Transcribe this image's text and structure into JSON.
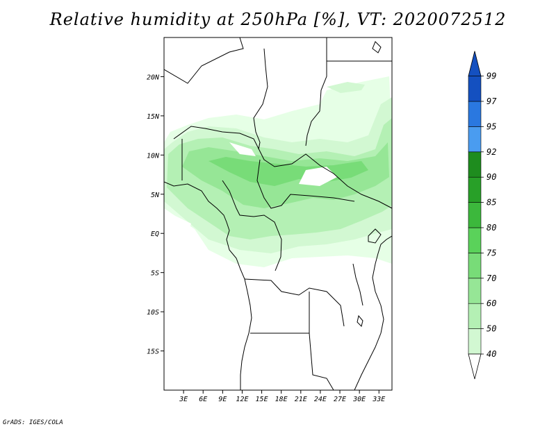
{
  "title": "Relative humidity at 250hPa [%], VT: 2020072512",
  "credit": "GrADS: IGES/COLA",
  "colors": {
    "rh_40": "#e6ffe6",
    "rh_50": "#d2f8d2",
    "rh_60": "#b4f0b4",
    "rh_70": "#96e696",
    "rh_75": "#78dc78",
    "rh_80": "#5ad25a",
    "rh_85": "#3cb83c",
    "rh_90": "#28a028",
    "rh_92": "#1e8c1e",
    "rh_95": "#4a9cf0",
    "rh_97": "#2a78e0",
    "rh_99": "#1450c0",
    "coast": "#000000"
  },
  "chart_data": {
    "type": "heatmap",
    "title": "Relative humidity at 250hPa [%], VT: 2020072512",
    "x_axis": {
      "range": [
        0,
        35
      ],
      "ticks": [
        3,
        6,
        9,
        12,
        15,
        18,
        21,
        24,
        27,
        30,
        33
      ],
      "tick_labels": [
        "3E",
        "6E",
        "9E",
        "12E",
        "15E",
        "18E",
        "21E",
        "24E",
        "27E",
        "30E",
        "33E"
      ]
    },
    "y_axis": {
      "range": [
        -20,
        25
      ],
      "ticks": [
        20,
        15,
        10,
        5,
        0,
        -5,
        -10,
        -15
      ],
      "tick_labels": [
        "20N",
        "15N",
        "10N",
        "5N",
        "EQ",
        "5S",
        "10S",
        "15S"
      ]
    },
    "colorbar": {
      "levels": [
        40,
        50,
        60,
        70,
        75,
        80,
        85,
        90,
        92,
        95,
        97,
        99
      ],
      "labels": [
        "40",
        "50",
        "60",
        "70",
        "75",
        "80",
        "85",
        "90",
        "92",
        "95",
        "97",
        "99"
      ]
    },
    "grid": false
  }
}
